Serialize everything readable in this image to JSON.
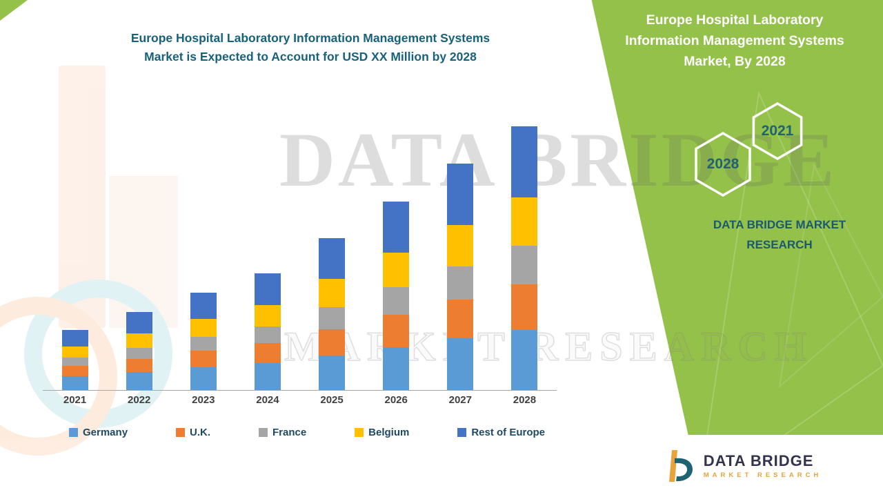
{
  "title": {
    "line1": "Europe Hospital Laboratory Information Management Systems",
    "line2": "Market is Expected to Account for USD XX Million by 2028"
  },
  "side_panel": {
    "title_lines": [
      "Europe Hospital Laboratory",
      "Information Management Systems",
      "Market, By 2028"
    ],
    "hexagon_year_1": "2021",
    "hexagon_year_2": "2028",
    "brand_line1": "DATA BRIDGE MARKET",
    "brand_line2": "RESEARCH"
  },
  "watermark": {
    "line1": "DATA BRIDGE",
    "line2": "MARKET RESEARCH"
  },
  "logo": {
    "name": "DATA BRIDGE",
    "sub": "MARKET  RESEARCH"
  },
  "colors": {
    "green_panel": "#94C14A",
    "title_teal": "#17617C",
    "legend_text": "#1F4961"
  },
  "chart_data": {
    "type": "bar",
    "stacked": true,
    "title": "Europe Hospital Laboratory Information Management Systems Market is Expected to Account for USD XX Million by 2028",
    "xlabel": "",
    "ylabel": "",
    "y_axis_visible": false,
    "grid": false,
    "legend_position": "bottom",
    "ylim": [
      0,
      400
    ],
    "categories": [
      "2021",
      "2022",
      "2023",
      "2024",
      "2025",
      "2026",
      "2027",
      "2028"
    ],
    "series": [
      {
        "name": "Germany",
        "color": "#5B9BD5",
        "values": [
          20,
          26,
          33,
          39,
          50,
          62,
          75,
          87
        ]
      },
      {
        "name": "U.K.",
        "color": "#ED7D31",
        "values": [
          15,
          19,
          24,
          29,
          38,
          47,
          56,
          66
        ]
      },
      {
        "name": "France",
        "color": "#A5A5A5",
        "values": [
          12,
          16,
          20,
          24,
          32,
          40,
          48,
          56
        ]
      },
      {
        "name": "Belgium",
        "color": "#FFC000",
        "values": [
          16,
          21,
          26,
          31,
          41,
          50,
          60,
          70
        ]
      },
      {
        "name": "Rest of Europe",
        "color": "#4472C4",
        "values": [
          24,
          31,
          38,
          46,
          59,
          74,
          89,
          103
        ]
      }
    ]
  }
}
